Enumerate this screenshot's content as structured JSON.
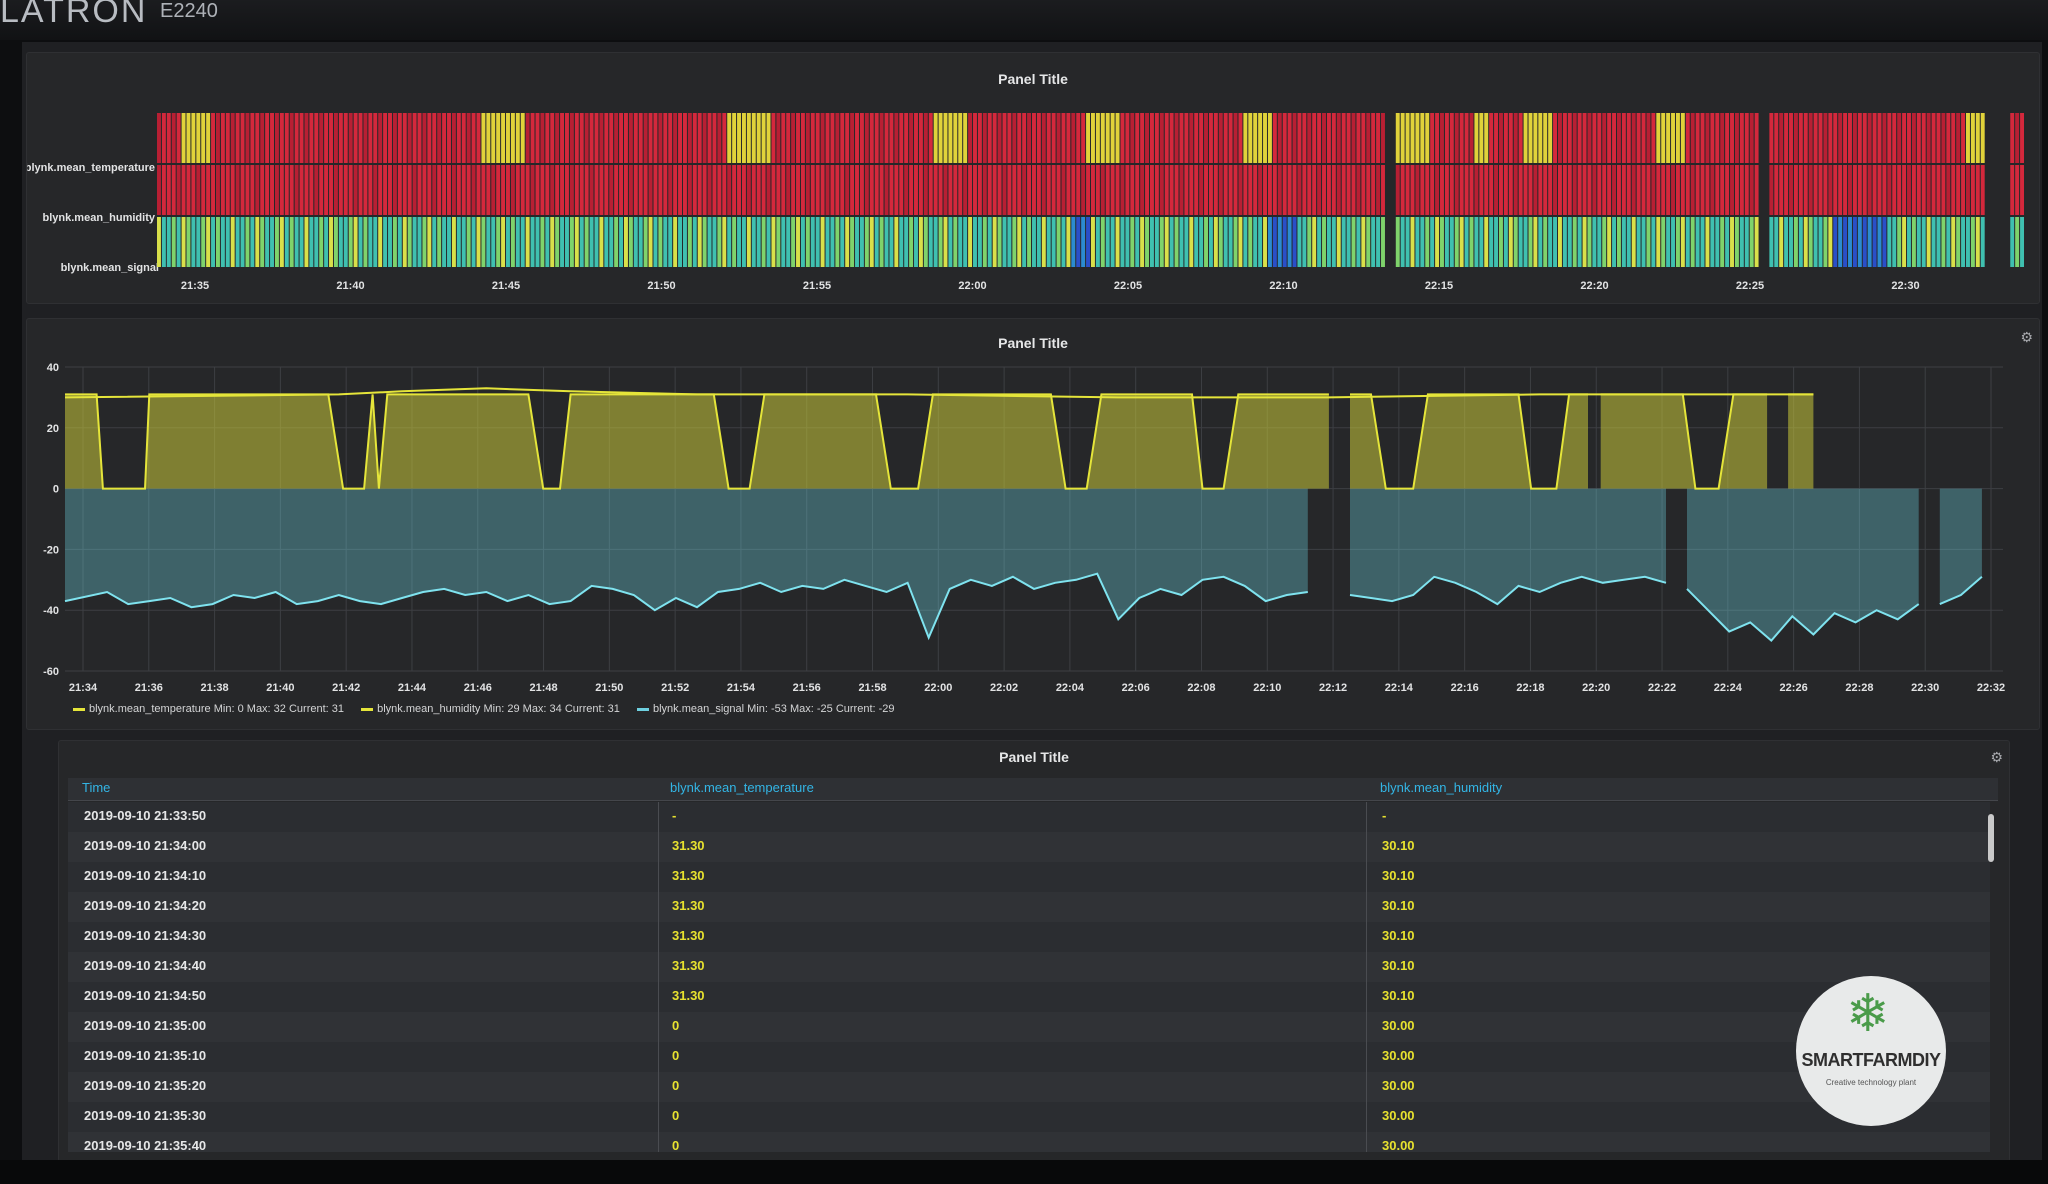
{
  "monitor": {
    "brand": "LATRON",
    "model": "E2240"
  },
  "panels": {
    "heatmap_title": "Panel Title",
    "graph_title": "Panel Title",
    "table_title": "Panel Title"
  },
  "heatmap": {
    "rows": [
      "blynk.mean_temperature",
      "blynk.mean_humidity",
      "blynk.mean_signal"
    ],
    "x_ticks": [
      "21:35",
      "21:40",
      "21:45",
      "21:50",
      "21:55",
      "22:00",
      "22:05",
      "22:10",
      "22:15",
      "22:20",
      "22:25",
      "22:30"
    ]
  },
  "chart_data": {
    "type": "line",
    "x_ticks": [
      "21:34",
      "21:36",
      "21:38",
      "21:40",
      "21:42",
      "21:44",
      "21:46",
      "21:48",
      "21:50",
      "21:52",
      "21:54",
      "21:56",
      "21:58",
      "22:00",
      "22:02",
      "22:04",
      "22:06",
      "22:08",
      "22:10",
      "22:12",
      "22:14",
      "22:16",
      "22:18",
      "22:20",
      "22:22",
      "22:24",
      "22:26",
      "22:28",
      "22:30",
      "22:32"
    ],
    "x_range": [
      "21:34",
      "22:33"
    ],
    "ylim": [
      -60,
      40
    ],
    "y_ticks": [
      40,
      20,
      0,
      -20,
      -40,
      -60
    ],
    "grid": true,
    "legend_position": "bottom-left",
    "series": [
      {
        "name": "blynk.mean_temperature",
        "color": "#e5e53a",
        "min": "0",
        "max": "32",
        "current": "31",
        "points": [
          [
            0,
            31
          ],
          [
            1.5,
            31
          ],
          [
            1.8,
            0
          ],
          [
            3.8,
            0
          ],
          [
            4,
            31
          ],
          [
            12.5,
            31
          ],
          [
            13.2,
            0
          ],
          [
            14.2,
            0
          ],
          [
            14.6,
            31
          ],
          [
            14.9,
            0
          ],
          [
            15.3,
            31
          ],
          [
            22,
            31
          ],
          [
            22.7,
            0
          ],
          [
            23.5,
            0
          ],
          [
            24,
            31
          ],
          [
            30.8,
            31
          ],
          [
            31.5,
            0
          ],
          [
            32.5,
            0
          ],
          [
            33.2,
            31
          ],
          [
            38.5,
            31
          ],
          [
            39.2,
            0
          ],
          [
            40.5,
            0
          ],
          [
            41.2,
            31
          ],
          [
            46.8,
            31
          ],
          [
            47.5,
            0
          ],
          [
            48.5,
            0
          ],
          [
            49.2,
            31
          ],
          [
            53.5,
            31
          ],
          [
            54,
            0
          ],
          [
            55,
            0
          ],
          [
            55.7,
            31
          ],
          [
            60,
            31
          ],
          [
            60.5,
            null
          ],
          [
            61,
            31
          ],
          [
            62,
            31
          ],
          [
            62.7,
            0
          ],
          [
            64,
            0
          ],
          [
            64.7,
            31
          ],
          [
            69,
            31
          ],
          [
            69.6,
            0
          ],
          [
            70.8,
            0
          ],
          [
            71.4,
            31
          ],
          [
            72.3,
            31
          ],
          [
            72.6,
            null
          ],
          [
            72.9,
            31
          ],
          [
            76.8,
            31
          ],
          [
            77.4,
            0
          ],
          [
            78.5,
            0
          ],
          [
            79.2,
            31
          ],
          [
            80.8,
            31
          ],
          [
            81.2,
            null
          ],
          [
            81.8,
            31
          ],
          [
            83,
            31
          ]
        ]
      },
      {
        "name": "blynk.mean_humidity",
        "color": "#e5e53a",
        "min": "29",
        "max": "34",
        "current": "31",
        "points": [
          [
            0,
            30
          ],
          [
            13,
            31
          ],
          [
            16,
            32
          ],
          [
            20,
            33
          ],
          [
            24,
            32
          ],
          [
            30,
            31
          ],
          [
            40,
            31
          ],
          [
            50,
            30
          ],
          [
            60,
            30
          ],
          [
            70,
            31
          ],
          [
            83,
            31
          ]
        ]
      },
      {
        "name": "blynk.mean_signal",
        "color": "#6ed0e0",
        "min": "-53",
        "max": "-25",
        "current": "-29",
        "points": [
          [
            0,
            -37
          ],
          [
            2,
            -34
          ],
          [
            3,
            -38
          ],
          [
            4,
            -37
          ],
          [
            5,
            -36
          ],
          [
            6,
            -39
          ],
          [
            7,
            -38
          ],
          [
            8,
            -35
          ],
          [
            9,
            -36
          ],
          [
            10,
            -34
          ],
          [
            11,
            -38
          ],
          [
            12,
            -37
          ],
          [
            13,
            -35
          ],
          [
            14,
            -37
          ],
          [
            15,
            -38
          ],
          [
            16,
            -36
          ],
          [
            17,
            -34
          ],
          [
            18,
            -33
          ],
          [
            19,
            -35
          ],
          [
            20,
            -34
          ],
          [
            21,
            -37
          ],
          [
            22,
            -35
          ],
          [
            23,
            -38
          ],
          [
            24,
            -37
          ],
          [
            25,
            -32
          ],
          [
            26,
            -33
          ],
          [
            27,
            -35
          ],
          [
            28,
            -40
          ],
          [
            29,
            -36
          ],
          [
            30,
            -39
          ],
          [
            31,
            -34
          ],
          [
            32,
            -33
          ],
          [
            33,
            -31
          ],
          [
            34,
            -34
          ],
          [
            35,
            -32
          ],
          [
            36,
            -33
          ],
          [
            37,
            -30
          ],
          [
            38,
            -32
          ],
          [
            39,
            -34
          ],
          [
            40,
            -31
          ],
          [
            41,
            -49
          ],
          [
            42,
            -33
          ],
          [
            43,
            -30
          ],
          [
            44,
            -32
          ],
          [
            45,
            -29
          ],
          [
            46,
            -33
          ],
          [
            47,
            -31
          ],
          [
            48,
            -30
          ],
          [
            49,
            -28
          ],
          [
            50,
            -43
          ],
          [
            51,
            -36
          ],
          [
            52,
            -33
          ],
          [
            53,
            -35
          ],
          [
            54,
            -30
          ],
          [
            55,
            -29
          ],
          [
            56,
            -32
          ],
          [
            57,
            -37
          ],
          [
            58,
            -35
          ],
          [
            59,
            -34
          ],
          [
            60,
            null
          ],
          [
            61,
            -35
          ],
          [
            62,
            -36
          ],
          [
            63,
            -37
          ],
          [
            64,
            -35
          ],
          [
            65,
            -29
          ],
          [
            66,
            -31
          ],
          [
            67,
            -34
          ],
          [
            68,
            -38
          ],
          [
            69,
            -32
          ],
          [
            70,
            -34
          ],
          [
            71,
            -31
          ],
          [
            72,
            -29
          ],
          [
            73,
            -31
          ],
          [
            74,
            -30
          ],
          [
            75,
            -29
          ],
          [
            76,
            -31
          ],
          [
            76.5,
            null
          ],
          [
            77,
            -33
          ],
          [
            78,
            -40
          ],
          [
            79,
            -47
          ],
          [
            80,
            -44
          ],
          [
            81,
            -50
          ],
          [
            82,
            -42
          ],
          [
            83,
            -48
          ],
          [
            84,
            -41
          ],
          [
            85,
            -44
          ],
          [
            86,
            -40
          ],
          [
            87,
            -43
          ],
          [
            88,
            -38
          ],
          [
            88.5,
            null
          ],
          [
            89,
            -38
          ],
          [
            90,
            -35
          ],
          [
            91,
            -29
          ]
        ]
      }
    ]
  },
  "table": {
    "headers": [
      "Time",
      "blynk.mean_temperature",
      "blynk.mean_humidity"
    ],
    "rows": [
      [
        "2019-09-10 21:33:50",
        "-",
        "-"
      ],
      [
        "2019-09-10 21:34:00",
        "31.30",
        "30.10"
      ],
      [
        "2019-09-10 21:34:10",
        "31.30",
        "30.10"
      ],
      [
        "2019-09-10 21:34:20",
        "31.30",
        "30.10"
      ],
      [
        "2019-09-10 21:34:30",
        "31.30",
        "30.10"
      ],
      [
        "2019-09-10 21:34:40",
        "31.30",
        "30.10"
      ],
      [
        "2019-09-10 21:34:50",
        "31.30",
        "30.10"
      ],
      [
        "2019-09-10 21:35:00",
        "0",
        "30.00"
      ],
      [
        "2019-09-10 21:35:10",
        "0",
        "30.00"
      ],
      [
        "2019-09-10 21:35:20",
        "0",
        "30.00"
      ],
      [
        "2019-09-10 21:35:30",
        "0",
        "30.00"
      ],
      [
        "2019-09-10 21:35:40",
        "0",
        "30.00"
      ]
    ]
  },
  "logo": {
    "name": "SMARTFARMDIY",
    "tagline": "Creative technology plant"
  },
  "colors": {
    "heat_red": "#d4283c",
    "heat_yellow": "#e0d23a",
    "heat_cyan": "#3fc0b0",
    "heat_blue": "#2a4fc8",
    "accent": "#33b5e5"
  }
}
